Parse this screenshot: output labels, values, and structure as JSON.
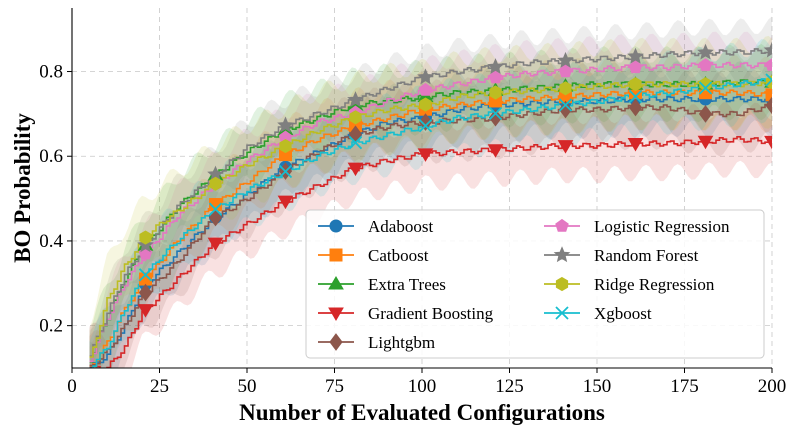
{
  "chart_data": {
    "type": "line",
    "title": "",
    "xlabel": "Number of Evaluated Configurations",
    "ylabel": "BO Probability",
    "xlim": [
      0,
      200
    ],
    "ylim": [
      0.1,
      0.95
    ],
    "xticks": [
      "0",
      "25",
      "50",
      "75",
      "100",
      "125",
      "150",
      "175",
      "200"
    ],
    "yticks": [
      "0.2",
      "0.4",
      "0.6",
      "0.8"
    ],
    "grid": true,
    "legend_position": "lower-right",
    "marker_every": [
      1,
      21,
      41,
      61,
      81,
      101,
      121,
      141,
      161,
      181,
      200
    ],
    "series": [
      {
        "name": "Adaboost",
        "color": "#1f77b4",
        "marker": "circle",
        "x": [
          5,
          10,
          15,
          20,
          25,
          30,
          40,
          50,
          60,
          70,
          80,
          90,
          100,
          110,
          120,
          130,
          140,
          150,
          160,
          170,
          180,
          190,
          200
        ],
        "y": [
          0.1,
          0.13,
          0.2,
          0.29,
          0.33,
          0.37,
          0.45,
          0.51,
          0.57,
          0.61,
          0.65,
          0.68,
          0.69,
          0.71,
          0.72,
          0.725,
          0.73,
          0.73,
          0.735,
          0.735,
          0.735,
          0.735,
          0.735
        ],
        "band": 0.07
      },
      {
        "name": "Catboost",
        "color": "#ff7f0e",
        "marker": "square",
        "x": [
          5,
          10,
          15,
          20,
          25,
          30,
          40,
          50,
          60,
          70,
          80,
          90,
          100,
          110,
          120,
          130,
          140,
          150,
          160,
          170,
          180,
          190,
          200
        ],
        "y": [
          0.1,
          0.16,
          0.24,
          0.3,
          0.35,
          0.4,
          0.48,
          0.54,
          0.6,
          0.64,
          0.67,
          0.69,
          0.71,
          0.72,
          0.73,
          0.735,
          0.74,
          0.745,
          0.75,
          0.75,
          0.75,
          0.75,
          0.745
        ],
        "band": 0.07
      },
      {
        "name": "Extra Trees",
        "color": "#2ca02c",
        "marker": "triangle-up",
        "x": [
          5,
          10,
          15,
          20,
          25,
          30,
          40,
          50,
          60,
          70,
          80,
          90,
          100,
          110,
          120,
          130,
          140,
          150,
          160,
          170,
          180,
          190,
          200
        ],
        "y": [
          0.12,
          0.22,
          0.31,
          0.38,
          0.43,
          0.48,
          0.55,
          0.61,
          0.66,
          0.69,
          0.72,
          0.73,
          0.74,
          0.75,
          0.755,
          0.76,
          0.765,
          0.77,
          0.77,
          0.77,
          0.77,
          0.775,
          0.775
        ],
        "band": 0.07
      },
      {
        "name": "Gradient Boosting",
        "color": "#d62728",
        "marker": "triangle-down",
        "x": [
          5,
          10,
          15,
          20,
          25,
          30,
          40,
          50,
          60,
          70,
          80,
          90,
          100,
          110,
          120,
          130,
          140,
          150,
          160,
          170,
          180,
          190,
          200
        ],
        "y": [
          0.1,
          0.1,
          0.15,
          0.23,
          0.27,
          0.31,
          0.39,
          0.44,
          0.49,
          0.53,
          0.57,
          0.59,
          0.605,
          0.61,
          0.615,
          0.62,
          0.625,
          0.625,
          0.63,
          0.63,
          0.635,
          0.64,
          0.635
        ],
        "band": 0.07
      },
      {
        "name": "Lightgbm",
        "color": "#8c564b",
        "marker": "diamond",
        "x": [
          5,
          10,
          15,
          20,
          25,
          30,
          40,
          50,
          60,
          70,
          80,
          90,
          100,
          110,
          120,
          130,
          140,
          150,
          160,
          170,
          180,
          190,
          200
        ],
        "y": [
          0.1,
          0.14,
          0.2,
          0.27,
          0.31,
          0.35,
          0.45,
          0.5,
          0.56,
          0.61,
          0.65,
          0.67,
          0.68,
          0.685,
          0.69,
          0.7,
          0.71,
          0.71,
          0.715,
          0.715,
          0.7,
          0.7,
          0.72
        ],
        "band": 0.08
      },
      {
        "name": "Logistic Regression",
        "color": "#e377c2",
        "marker": "pentagon",
        "x": [
          5,
          10,
          15,
          20,
          25,
          30,
          40,
          50,
          60,
          70,
          80,
          90,
          100,
          110,
          120,
          130,
          140,
          150,
          160,
          170,
          180,
          190,
          200
        ],
        "y": [
          0.12,
          0.22,
          0.3,
          0.36,
          0.41,
          0.46,
          0.53,
          0.59,
          0.64,
          0.68,
          0.7,
          0.73,
          0.755,
          0.77,
          0.785,
          0.795,
          0.8,
          0.805,
          0.81,
          0.81,
          0.815,
          0.815,
          0.815
        ],
        "band": 0.06
      },
      {
        "name": "Random Forest",
        "color": "#7f7f7f",
        "marker": "star",
        "x": [
          5,
          10,
          15,
          20,
          25,
          30,
          40,
          50,
          60,
          70,
          80,
          90,
          100,
          110,
          120,
          130,
          140,
          150,
          160,
          170,
          180,
          190,
          200
        ],
        "y": [
          0.13,
          0.23,
          0.32,
          0.38,
          0.43,
          0.48,
          0.55,
          0.62,
          0.67,
          0.7,
          0.73,
          0.76,
          0.785,
          0.8,
          0.81,
          0.82,
          0.825,
          0.83,
          0.835,
          0.84,
          0.845,
          0.845,
          0.85
        ],
        "band": 0.06
      },
      {
        "name": "Ridge Regression",
        "color": "#bcbd22",
        "marker": "hexagon",
        "x": [
          5,
          10,
          15,
          20,
          25,
          30,
          40,
          50,
          60,
          70,
          80,
          90,
          100,
          110,
          120,
          130,
          140,
          150,
          160,
          170,
          180,
          190,
          200
        ],
        "y": [
          0.12,
          0.26,
          0.34,
          0.4,
          0.44,
          0.47,
          0.53,
          0.58,
          0.62,
          0.66,
          0.69,
          0.71,
          0.72,
          0.74,
          0.75,
          0.755,
          0.76,
          0.765,
          0.77,
          0.77,
          0.77,
          0.77,
          0.775
        ],
        "band": 0.09
      },
      {
        "name": "Xgboost",
        "color": "#17becf",
        "marker": "x",
        "x": [
          5,
          10,
          15,
          20,
          25,
          30,
          40,
          50,
          60,
          70,
          80,
          90,
          100,
          110,
          120,
          130,
          140,
          150,
          160,
          170,
          180,
          190,
          200
        ],
        "y": [
          0.1,
          0.15,
          0.24,
          0.31,
          0.36,
          0.4,
          0.47,
          0.52,
          0.56,
          0.6,
          0.63,
          0.65,
          0.67,
          0.69,
          0.7,
          0.71,
          0.72,
          0.73,
          0.74,
          0.75,
          0.76,
          0.77,
          0.78
        ],
        "band": 0.08
      }
    ]
  }
}
